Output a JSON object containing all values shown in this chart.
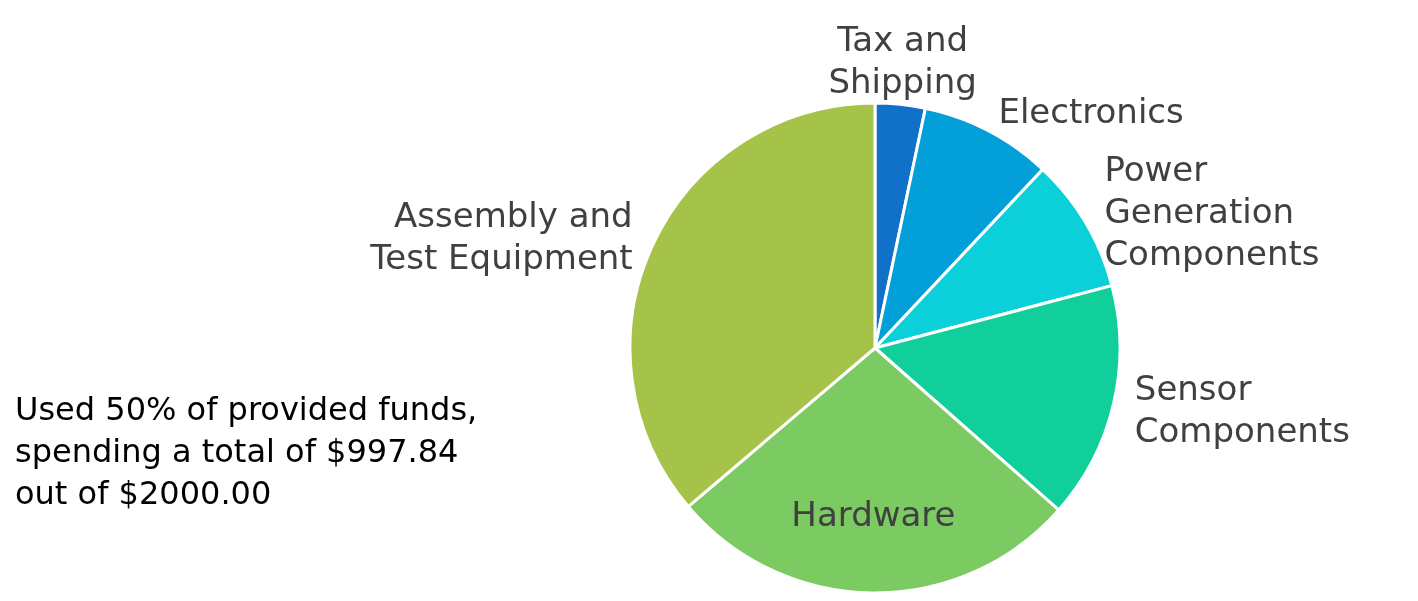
{
  "chart_data": {
    "type": "pie",
    "categories": [
      "Tax and Shipping",
      "Electronics",
      "Power Generation Components",
      "Sensor Components",
      "Hardware",
      "Assembly and Test Equipment"
    ],
    "values": [
      3.3,
      8.7,
      8.9,
      15.6,
      27.3,
      36.2
    ],
    "colors": [
      "#1170c8",
      "#039fd9",
      "#0bd0d9",
      "#10cf9b",
      "#7cca62",
      "#a5c249"
    ],
    "annotations": [
      "Used 50% of provided funds, spending a total of $997.84 out of $2000.00"
    ]
  }
}
